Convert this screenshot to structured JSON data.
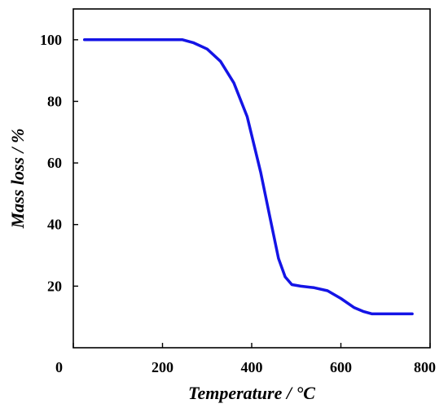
{
  "chart_data": {
    "type": "line",
    "title": "",
    "xlabel": "Temperature / °C",
    "ylabel": "Mass loss / %",
    "xlim": [
      0,
      800
    ],
    "ylim": [
      0,
      110
    ],
    "xticks": [
      0,
      200,
      400,
      600,
      800
    ],
    "yticks": [
      20,
      40,
      60,
      80,
      100
    ],
    "grid": false,
    "legend": "none",
    "colors": {
      "series": "#1414e6",
      "axis": "#000000"
    },
    "series": [
      {
        "x": [
          25,
          100,
          200,
          245,
          270,
          300,
          330,
          360,
          390,
          420,
          440,
          460,
          475,
          490,
          510,
          540,
          570,
          600,
          630,
          650,
          670,
          700,
          730,
          760
        ],
        "y": [
          100,
          100,
          100,
          100,
          99,
          97,
          93,
          86,
          75,
          57,
          43,
          29,
          23,
          20.5,
          20,
          19.5,
          18.5,
          16,
          13,
          11.8,
          11,
          11,
          11,
          11
        ]
      }
    ]
  }
}
